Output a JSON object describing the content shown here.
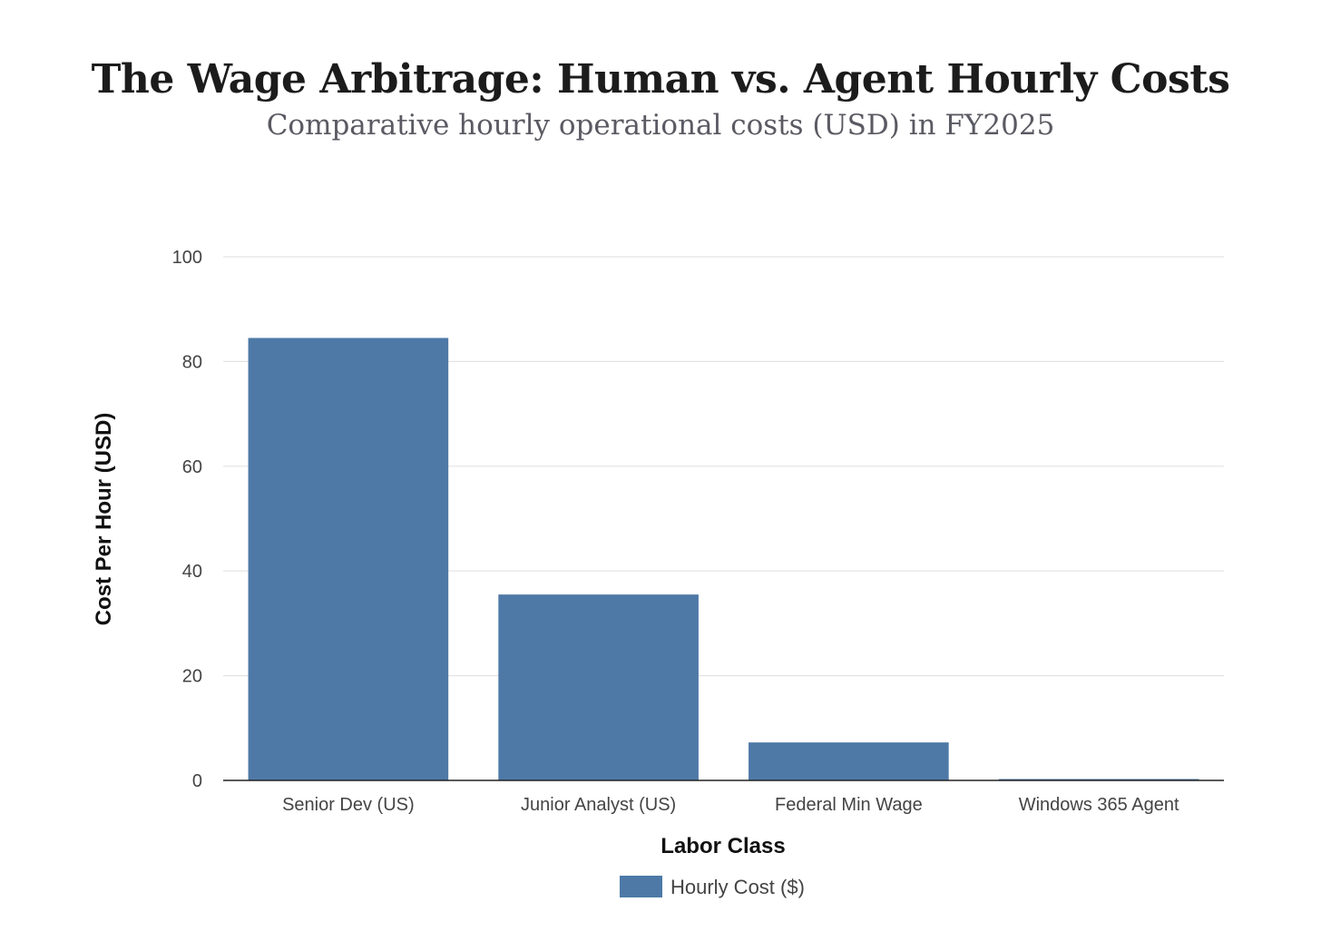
{
  "chart_data": {
    "type": "bar",
    "title": "The Wage Arbitrage: Human vs. Agent Hourly Costs",
    "subtitle": "Comparative hourly operational costs (USD) in FY2025",
    "xlabel": "Labor Class",
    "ylabel": "Cost Per Hour (USD)",
    "categories": [
      "Senior Dev (US)",
      "Junior Analyst (US)",
      "Federal Min Wage",
      "Windows 365 Agent"
    ],
    "series": [
      {
        "name": "Hourly Cost ($)",
        "values": [
          84.5,
          35.5,
          7.25,
          0.25
        ],
        "color": "#4e79a7"
      }
    ],
    "ylim": [
      0,
      100
    ],
    "yticks": [
      "0",
      "20",
      "40",
      "60",
      "80",
      "100"
    ],
    "grid": true,
    "legend_position": "bottom-center"
  }
}
